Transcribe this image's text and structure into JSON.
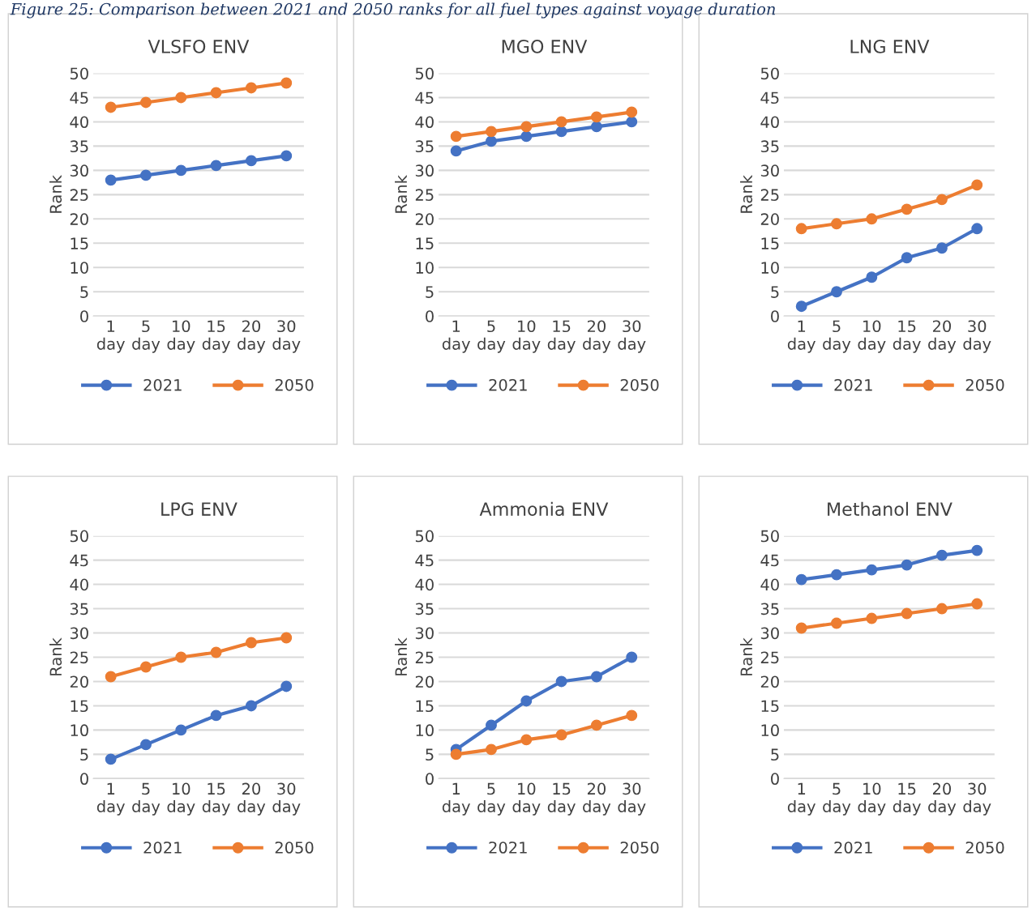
{
  "chart_data": [
    {
      "type": "line",
      "title": "VLSFO ENV",
      "ylabel": "Rank",
      "categories": [
        "1\nday",
        "5\nday",
        "10\nday",
        "15\nday",
        "20\nday",
        "30\nday"
      ],
      "ylim": [
        0,
        50
      ],
      "yticks": [
        0,
        5,
        10,
        15,
        20,
        25,
        30,
        35,
        40,
        45,
        50
      ],
      "grid": "y",
      "legend": "bottom",
      "marker": "circle",
      "line_style": "solid",
      "annotations": [
        "Figure 25: Comparison between 2021 and 2050 ranks for all fuel types against voyage duration"
      ],
      "series": [
        {
          "name": "2021",
          "color": "#4472c4",
          "values": [
            28,
            29,
            30,
            31,
            32,
            33
          ]
        },
        {
          "name": "2050",
          "color": "#ed7d31",
          "values": [
            43,
            44,
            45,
            46,
            47,
            48
          ]
        }
      ]
    },
    {
      "type": "line",
      "title": "MGO ENV",
      "ylabel": "Rank",
      "categories": [
        "1\nday",
        "5\nday",
        "10\nday",
        "15\nday",
        "20\nday",
        "30\nday"
      ],
      "ylim": [
        0,
        50
      ],
      "yticks": [
        0,
        5,
        10,
        15,
        20,
        25,
        30,
        35,
        40,
        45,
        50
      ],
      "grid": "y",
      "legend": "bottom",
      "marker": "circle",
      "line_style": "solid",
      "series": [
        {
          "name": "2021",
          "color": "#4472c4",
          "values": [
            34,
            36,
            37,
            38,
            39,
            40
          ]
        },
        {
          "name": "2050",
          "color": "#ed7d31",
          "values": [
            37,
            38,
            39,
            40,
            41,
            42
          ]
        }
      ]
    },
    {
      "type": "line",
      "title": "LNG ENV",
      "ylabel": "Rank",
      "categories": [
        "1\nday",
        "5\nday",
        "10\nday",
        "15\nday",
        "20\nday",
        "30\nday"
      ],
      "ylim": [
        0,
        50
      ],
      "yticks": [
        0,
        5,
        10,
        15,
        20,
        25,
        30,
        35,
        40,
        45,
        50
      ],
      "grid": "y",
      "legend": "bottom",
      "marker": "circle",
      "line_style": "solid",
      "series": [
        {
          "name": "2021",
          "color": "#4472c4",
          "values": [
            2,
            5,
            8,
            12,
            14,
            18
          ]
        },
        {
          "name": "2050",
          "color": "#ed7d31",
          "values": [
            18,
            19,
            20,
            22,
            24,
            27
          ]
        }
      ]
    },
    {
      "type": "line",
      "title": "LPG ENV",
      "ylabel": "Rank",
      "categories": [
        "1\nday",
        "5\nday",
        "10\nday",
        "15\nday",
        "20\nday",
        "30\nday"
      ],
      "ylim": [
        0,
        50
      ],
      "yticks": [
        0,
        5,
        10,
        15,
        20,
        25,
        30,
        35,
        40,
        45,
        50
      ],
      "grid": "y",
      "legend": "bottom",
      "marker": "circle",
      "line_style": "solid",
      "series": [
        {
          "name": "2021",
          "color": "#4472c4",
          "values": [
            4,
            7,
            10,
            13,
            15,
            19
          ]
        },
        {
          "name": "2050",
          "color": "#ed7d31",
          "values": [
            21,
            23,
            25,
            26,
            28,
            29
          ]
        }
      ]
    },
    {
      "type": "line",
      "title": "Ammonia ENV",
      "ylabel": "Rank",
      "categories": [
        "1\nday",
        "5\nday",
        "10\nday",
        "15\nday",
        "20\nday",
        "30\nday"
      ],
      "ylim": [
        0,
        50
      ],
      "yticks": [
        0,
        5,
        10,
        15,
        20,
        25,
        30,
        35,
        40,
        45,
        50
      ],
      "grid": "y",
      "legend": "bottom",
      "marker": "circle",
      "line_style": "solid",
      "series": [
        {
          "name": "2021",
          "color": "#4472c4",
          "values": [
            6,
            11,
            16,
            20,
            21,
            25
          ]
        },
        {
          "name": "2050",
          "color": "#ed7d31",
          "values": [
            5,
            6,
            8,
            9,
            11,
            13
          ]
        }
      ]
    },
    {
      "type": "line",
      "title": "Methanol ENV",
      "ylabel": "Rank",
      "categories": [
        "1\nday",
        "5\nday",
        "10\nday",
        "15\nday",
        "20\nday",
        "30\nday"
      ],
      "ylim": [
        0,
        50
      ],
      "yticks": [
        0,
        5,
        10,
        15,
        20,
        25,
        30,
        35,
        40,
        45,
        50
      ],
      "grid": "y",
      "legend": "bottom",
      "marker": "circle",
      "line_style": "solid",
      "series": [
        {
          "name": "2021",
          "color": "#4472c4",
          "values": [
            41,
            42,
            43,
            44,
            46,
            47
          ]
        },
        {
          "name": "2050",
          "color": "#ed7d31",
          "values": [
            31,
            32,
            33,
            34,
            35,
            36
          ]
        }
      ]
    }
  ]
}
